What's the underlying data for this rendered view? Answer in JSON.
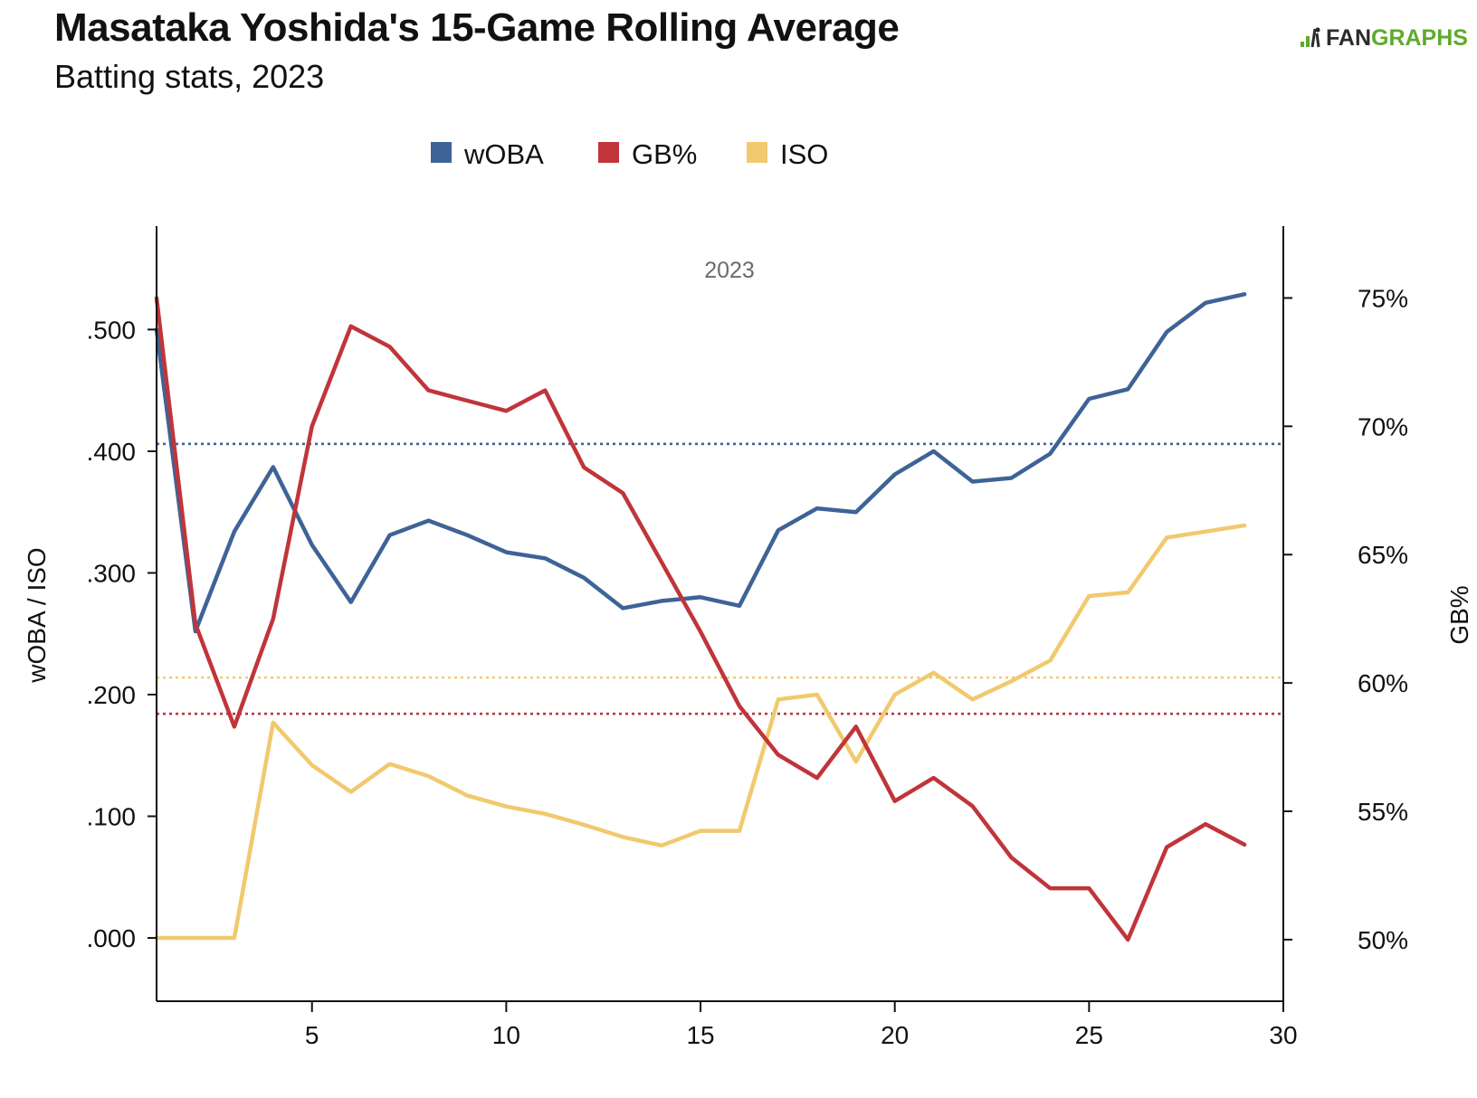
{
  "header": {
    "title": "Masataka Yoshida's 15-Game Rolling Average",
    "subtitle": "Batting stats, 2023",
    "logo_text_dark": "FAN",
    "logo_text_green": "GRAPHS"
  },
  "colors": {
    "woba": "#3e6396",
    "gb": "#c0353a",
    "iso": "#f1c96e",
    "axis": "#111111"
  },
  "chart_data": {
    "type": "line",
    "title": "Masataka Yoshida's 15-Game Rolling Average",
    "subtitle": "Batting stats, 2023",
    "annotation": "2023",
    "legend": {
      "placement": "top-center",
      "entries": [
        "wOBA",
        "GB%",
        "ISO"
      ]
    },
    "grid": false,
    "x": [
      1,
      2,
      3,
      4,
      5,
      6,
      7,
      8,
      9,
      10,
      11,
      12,
      13,
      14,
      15,
      16,
      17,
      18,
      19,
      20,
      21,
      22,
      23,
      24,
      25,
      26,
      27,
      28,
      29
    ],
    "xlim": [
      1,
      30
    ],
    "x_ticks": [
      5,
      10,
      15,
      20,
      25,
      30
    ],
    "left_axis": {
      "label": "wOBA / ISO",
      "lim": [
        -0.052,
        0.585
      ],
      "ticks": [
        0,
        0.1,
        0.2,
        0.3,
        0.4,
        0.5
      ],
      "tick_labels": [
        ".000",
        ".100",
        ".200",
        ".300",
        ".400",
        ".500"
      ]
    },
    "right_axis": {
      "label": "GB%",
      "lim": [
        47.6,
        77.8
      ],
      "ticks": [
        50,
        55,
        60,
        65,
        70,
        75
      ],
      "tick_labels": [
        "50%",
        "55%",
        "60%",
        "65%",
        "70%",
        "75%"
      ]
    },
    "series": [
      {
        "name": "wOBA",
        "axis": "left",
        "values": [
          0.5,
          0.252,
          0.334,
          0.387,
          0.323,
          0.276,
          0.331,
          0.343,
          0.331,
          0.317,
          0.312,
          0.296,
          0.271,
          0.277,
          0.28,
          0.273,
          0.335,
          0.353,
          0.35,
          0.381,
          0.4,
          0.375,
          0.378,
          0.398,
          0.443,
          0.451,
          0.498,
          0.522,
          0.529
        ],
        "reference": 0.406
      },
      {
        "name": "GB%",
        "axis": "right",
        "values": [
          75.0,
          62.3,
          58.3,
          62.5,
          70.0,
          73.9,
          73.1,
          71.4,
          71.0,
          70.6,
          71.4,
          68.4,
          67.4,
          64.7,
          62.0,
          59.1,
          57.2,
          56.3,
          58.3,
          55.4,
          56.3,
          55.2,
          53.2,
          52.0,
          52.0,
          50.0,
          53.6,
          54.5,
          53.7
        ],
        "reference": 58.8
      },
      {
        "name": "ISO",
        "axis": "left",
        "values": [
          0.0,
          0.0,
          0.0,
          0.177,
          0.142,
          0.12,
          0.143,
          0.133,
          0.117,
          0.108,
          0.102,
          0.093,
          0.083,
          0.076,
          0.088,
          0.088,
          0.196,
          0.2,
          0.145,
          0.2,
          0.218,
          0.196,
          0.211,
          0.228,
          0.281,
          0.284,
          0.329,
          0.334,
          0.339
        ],
        "reference": 0.214
      }
    ]
  }
}
